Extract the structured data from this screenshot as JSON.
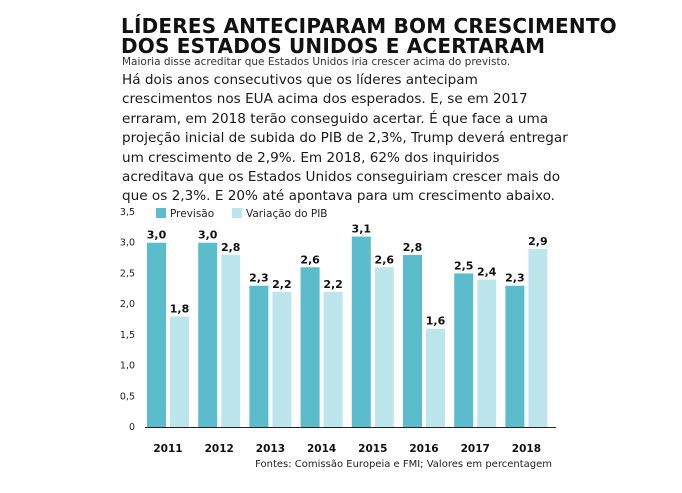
{
  "header": {
    "title_line1": "LÍDERES ANTECIPARAM BOM CRESCIMENTO",
    "title_line2": "DOS ESTADOS UNIDOS E ACERTARAM",
    "subtitle": "Maioria disse acreditar que Estados Unidos iria crescer acima do previsto.",
    "lead": "Há dois anos consecutivos que os líderes antecipam crescimentos nos EUA acima dos esperados. E, se em 2017 erraram, em 2018 terão conseguido acertar. É que face a uma projeção inicial de subida do PIB de 2,3%, Trump deverá entregar um crescimento de 2,9%. Em 2018, 62% dos inquiridos acreditava que os Estados Unidos conseguiriam crescer mais do que os 2,3%. E 20% até apontava para um crescimento abaixo."
  },
  "chart_data": {
    "type": "bar",
    "categories": [
      "2011",
      "2012",
      "2013",
      "2014",
      "2015",
      "2016",
      "2017",
      "2018"
    ],
    "series": [
      {
        "name": "Previsão",
        "color": "#5bbccc",
        "values": [
          3.0,
          3.0,
          2.3,
          2.6,
          3.1,
          2.8,
          2.5,
          2.3
        ],
        "labels": [
          "3,0",
          "3,0",
          "2,3",
          "2,6",
          "3,1",
          "2,8",
          "2,5",
          "2,3"
        ]
      },
      {
        "name": "Variação do PIB",
        "color": "#bde6ec",
        "values": [
          1.8,
          2.8,
          2.2,
          2.2,
          2.6,
          1.6,
          2.4,
          2.9
        ],
        "labels": [
          "1,8",
          "2,8",
          "2,2",
          "2,2",
          "2,6",
          "1,6",
          "2,4",
          "2,9"
        ]
      }
    ],
    "yticks": [
      "3,5",
      "3,0",
      "2,5",
      "2,0",
      "1,5",
      "1,0",
      "0,5",
      "0"
    ],
    "ylim": [
      0,
      3.5
    ],
    "grid": false,
    "legend_position": "top-left"
  },
  "footer": {
    "source": "Fontes: Comissão Europeia e FMI; Valores em percentagem"
  }
}
